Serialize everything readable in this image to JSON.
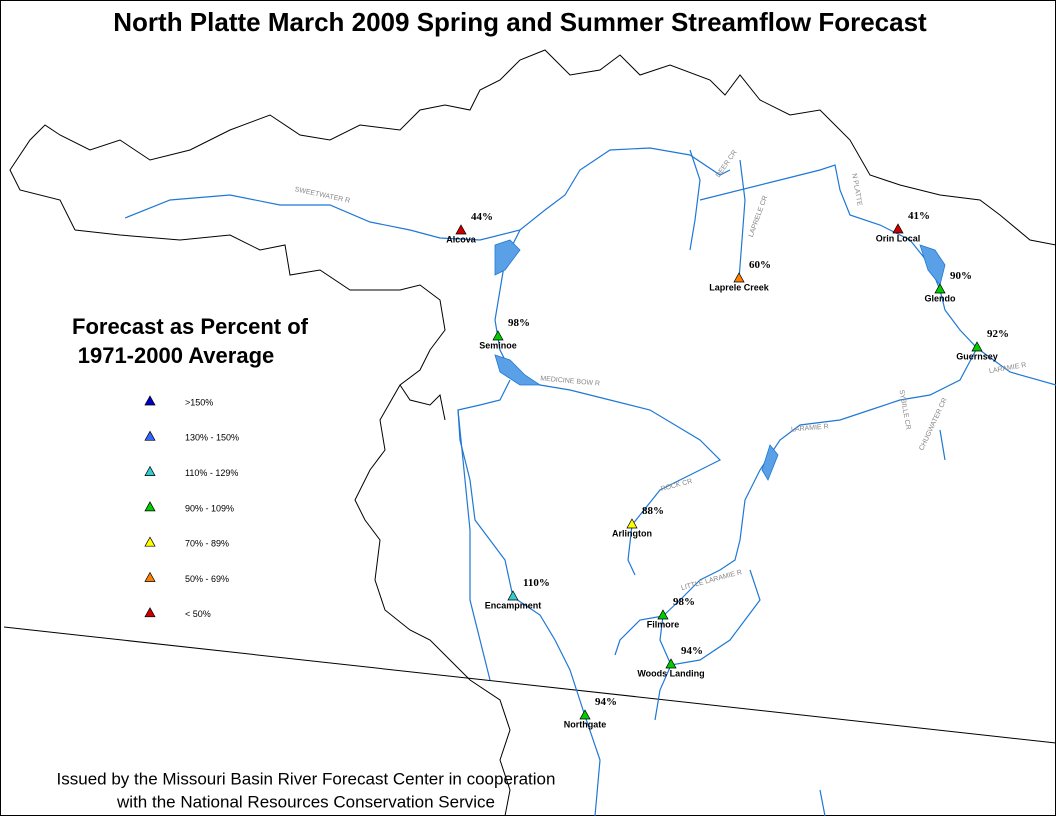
{
  "title": "North Platte March 2009 Spring and Summer Streamflow Forecast",
  "legend": {
    "title_lines": [
      "Forecast as Percent of",
      "1971-2000 Average"
    ],
    "items": [
      {
        "label": ">150%",
        "color": "#0000cc"
      },
      {
        "label": "130% - 150%",
        "color": "#3366ff"
      },
      {
        "label": "110% - 129%",
        "color": "#33cccc"
      },
      {
        "label": "90% - 109%",
        "color": "#00cc00"
      },
      {
        "label": "70% - 89%",
        "color": "#ffff00"
      },
      {
        "label": "50% - 69%",
        "color": "#ff8000"
      },
      {
        "label": "< 50%",
        "color": "#cc0000"
      }
    ]
  },
  "stations": [
    {
      "name": "Alcova",
      "percent": "44%",
      "color": "#cc0000"
    },
    {
      "name": "Orin Local",
      "percent": "41%",
      "color": "#cc0000"
    },
    {
      "name": "Laprele Creek",
      "percent": "60%",
      "color": "#ff8000"
    },
    {
      "name": "Glendo",
      "percent": "90%",
      "color": "#00cc00"
    },
    {
      "name": "Seminoe",
      "percent": "98%",
      "color": "#00cc00"
    },
    {
      "name": "Guernsey",
      "percent": "92%",
      "color": "#00cc00"
    },
    {
      "name": "Arlington",
      "percent": "88%",
      "color": "#ffff00"
    },
    {
      "name": "Encampment",
      "percent": "110%",
      "color": "#33cccc"
    },
    {
      "name": "Filmore",
      "percent": "98%",
      "color": "#00cc00"
    },
    {
      "name": "Woods Landing",
      "percent": "94%",
      "color": "#00cc00"
    },
    {
      "name": "Northgate",
      "percent": "94%",
      "color": "#00cc00"
    }
  ],
  "rivers": [
    "SWEETWATER R",
    "DEER CR",
    "LAPRELE CR",
    "N PLATTE",
    "MEDICINE BOW R",
    "LARAMIE R",
    "SYBILLE CR",
    "CHUGWATER CR",
    "ROCK CR",
    "LITTLE LARAMIE R",
    "LARAMIE R"
  ],
  "footer": [
    "Issued by the Missouri Basin River Forecast Center in cooperation",
    "with the National Resources Conservation Service"
  ]
}
